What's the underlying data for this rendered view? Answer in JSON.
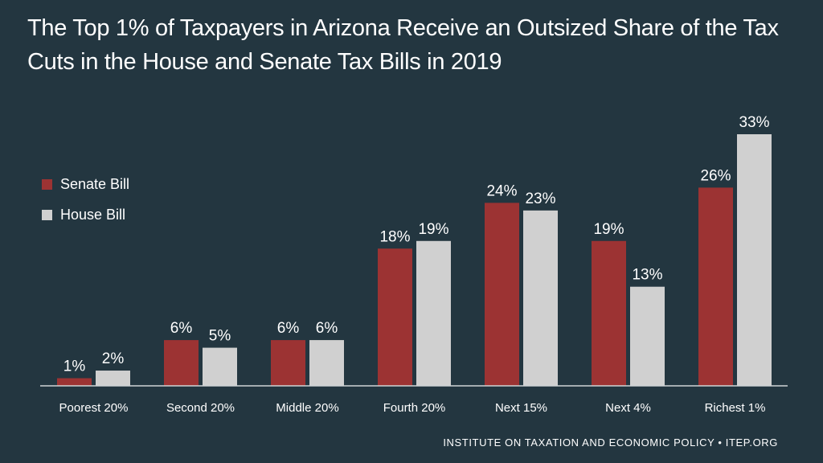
{
  "title": "The Top 1% of Taxpayers in Arizona Receive an Outsized Share of the Tax Cuts in the House and Senate Tax Bills in 2019",
  "footer": "INSTITUTE ON TAXATION AND ECONOMIC POLICY • ITEP.ORG",
  "chart_data": {
    "type": "bar",
    "title": "The Top 1% of Taxpayers in Arizona Receive an Outsized Share of the Tax Cuts in the House and Senate Tax Bills in 2019",
    "xlabel": "",
    "ylabel": "",
    "ylim": [
      0,
      35
    ],
    "grid": false,
    "legend_position": "left",
    "categories": [
      "Poorest 20%",
      "Second 20%",
      "Middle 20%",
      "Fourth 20%",
      "Next 15%",
      "Next 4%",
      "Richest 1%"
    ],
    "series": [
      {
        "name": "Senate Bill",
        "color": "#9c3333",
        "values": [
          1,
          6,
          6,
          18,
          24,
          19,
          26
        ],
        "labels": [
          "1%",
          "6%",
          "6%",
          "18%",
          "24%",
          "19%",
          "26%"
        ]
      },
      {
        "name": "House Bill",
        "color": "#d0d0d0",
        "values": [
          2,
          5,
          6,
          19,
          23,
          13,
          33
        ],
        "labels": [
          "2%",
          "5%",
          "6%",
          "19%",
          "23%",
          "13%",
          "33%"
        ]
      }
    ]
  }
}
